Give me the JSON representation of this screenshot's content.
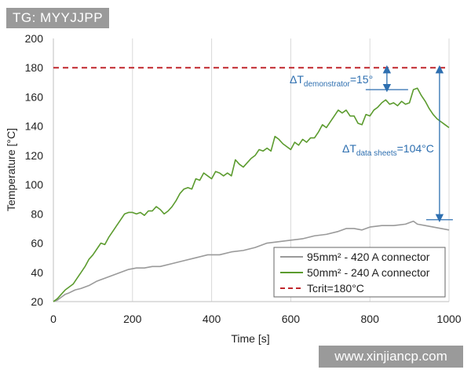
{
  "watermarks": {
    "top_left": "TG: MYYJJPP",
    "bottom_right": "www.xinjiancp.com"
  },
  "chart_data": {
    "type": "line",
    "xlabel": "Time [s]",
    "ylabel": "Temperature [°C]",
    "xlim": [
      0,
      1000
    ],
    "ylim": [
      20,
      200
    ],
    "xticks": [
      0,
      200,
      400,
      600,
      800,
      1000
    ],
    "yticks": [
      20,
      40,
      60,
      80,
      100,
      120,
      140,
      160,
      180,
      200
    ],
    "grid": "vertical",
    "legend_position": "bottom-right",
    "series": [
      {
        "name": "95mm² - 420 A connector",
        "color": "#9a9a9a",
        "x": [
          0,
          10,
          20,
          30,
          40,
          55,
          70,
          90,
          110,
          130,
          150,
          170,
          190,
          210,
          230,
          250,
          270,
          300,
          330,
          360,
          390,
          420,
          450,
          480,
          510,
          540,
          570,
          600,
          630,
          660,
          690,
          720,
          740,
          760,
          780,
          800,
          830,
          860,
          890,
          910,
          920,
          940,
          960,
          980,
          1000
        ],
        "y": [
          20,
          21,
          23,
          25,
          26,
          28,
          29,
          31,
          34,
          36,
          38,
          40,
          42,
          43,
          43,
          44,
          44,
          46,
          48,
          50,
          52,
          52,
          54,
          55,
          57,
          60,
          61,
          62,
          63,
          65,
          66,
          68,
          70,
          70,
          69,
          71,
          72,
          72,
          73,
          75,
          73,
          72,
          71,
          70,
          69
        ]
      },
      {
        "name": "50mm² - 240 A connector",
        "color": "#5b9b2e",
        "x": [
          0,
          10,
          20,
          30,
          40,
          50,
          60,
          70,
          80,
          90,
          100,
          110,
          120,
          130,
          140,
          150,
          160,
          170,
          180,
          190,
          200,
          210,
          220,
          230,
          240,
          250,
          260,
          270,
          280,
          290,
          300,
          310,
          320,
          330,
          340,
          350,
          360,
          370,
          380,
          390,
          400,
          410,
          420,
          430,
          440,
          450,
          460,
          470,
          480,
          490,
          500,
          510,
          520,
          530,
          540,
          550,
          560,
          570,
          580,
          590,
          600,
          610,
          620,
          630,
          640,
          650,
          660,
          670,
          680,
          690,
          700,
          710,
          720,
          730,
          740,
          750,
          760,
          770,
          780,
          790,
          800,
          810,
          820,
          830,
          840,
          850,
          860,
          870,
          880,
          890,
          900,
          910,
          920,
          930,
          940,
          950,
          960,
          970,
          980,
          990,
          1000
        ],
        "y": [
          20,
          22,
          25,
          28,
          30,
          32,
          36,
          40,
          44,
          49,
          52,
          56,
          60,
          59,
          64,
          68,
          72,
          76,
          80,
          81,
          81,
          80,
          81,
          79,
          82,
          82,
          85,
          83,
          80,
          82,
          85,
          89,
          94,
          97,
          98,
          97,
          104,
          103,
          108,
          106,
          104,
          109,
          108,
          106,
          108,
          106,
          117,
          114,
          112,
          115,
          118,
          120,
          124,
          123,
          125,
          123,
          133,
          131,
          128,
          126,
          124,
          129,
          127,
          131,
          129,
          132,
          132,
          136,
          141,
          139,
          143,
          147,
          151,
          149,
          151,
          147,
          147,
          142,
          141,
          148,
          147,
          151,
          153,
          156,
          158,
          155,
          156,
          154,
          157,
          155,
          156,
          165,
          166,
          161,
          157,
          152,
          148,
          145,
          143,
          141,
          139
        ]
      },
      {
        "name": "Tcrit=180°C",
        "color": "#c0272d",
        "style": "dashed",
        "x": [
          0,
          1000
        ],
        "y": [
          180,
          180
        ]
      }
    ],
    "annotations": [
      {
        "text_main": "ΔT",
        "text_sub": "demonstrator",
        "text_tail": "=15°",
        "from_y": 180,
        "to_y": 165,
        "at_x": 843
      },
      {
        "text_main": "ΔT",
        "text_sub": "data sheets",
        "text_tail": "=104°C",
        "from_y": 180,
        "to_y": 76,
        "at_x": 976
      }
    ]
  }
}
